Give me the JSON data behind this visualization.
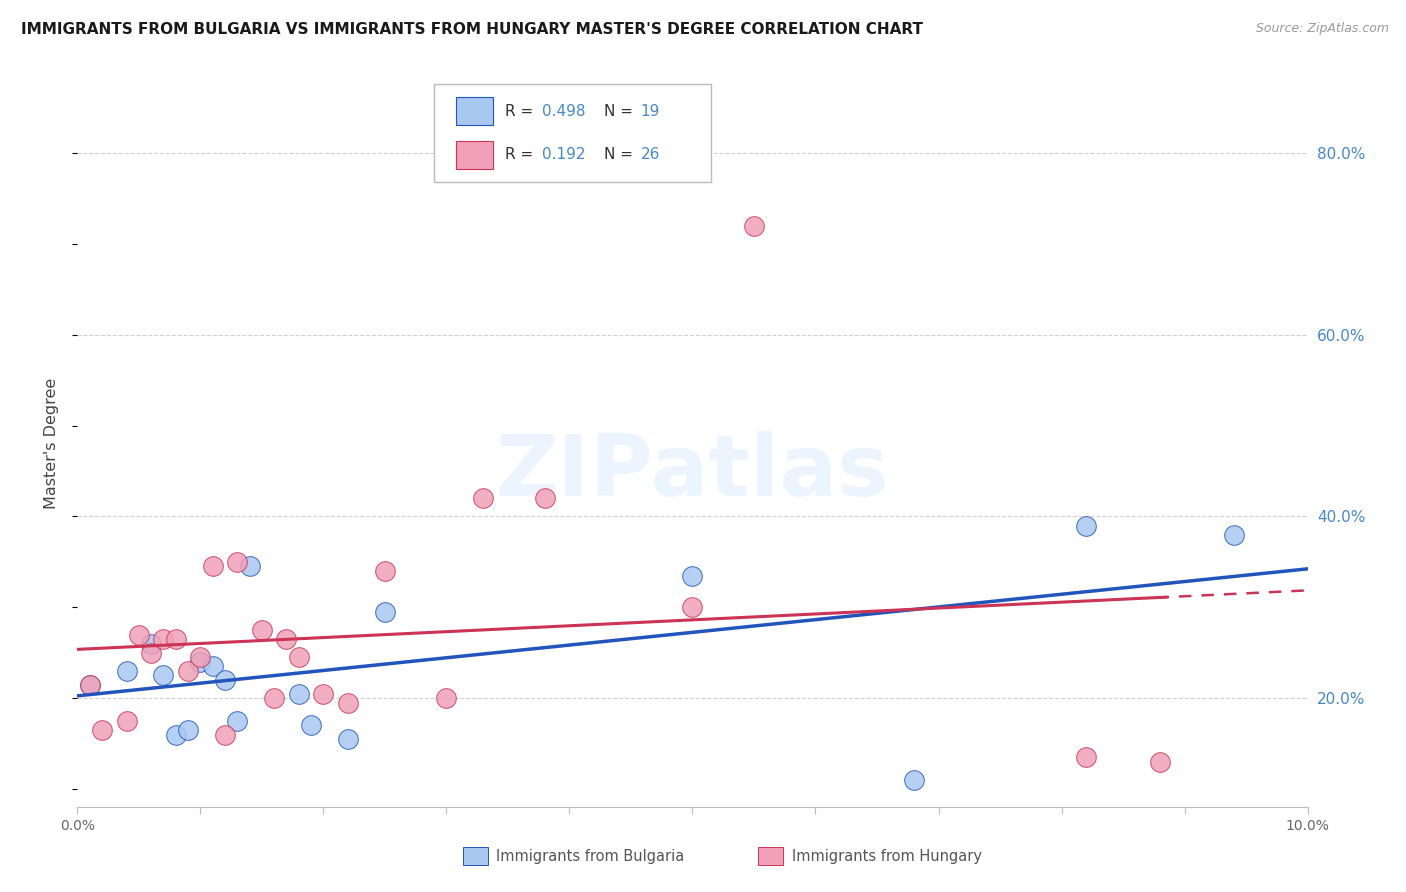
{
  "title": "IMMIGRANTS FROM BULGARIA VS IMMIGRANTS FROM HUNGARY MASTER'S DEGREE CORRELATION CHART",
  "source": "Source: ZipAtlas.com",
  "ylabel": "Master's Degree",
  "right_ytick_vals": [
    0.2,
    0.4,
    0.6,
    0.8
  ],
  "right_ytick_labels": [
    "20.0%",
    "40.0%",
    "60.0%",
    "80.0%"
  ],
  "xlim": [
    0.0,
    0.1
  ],
  "ylim": [
    0.08,
    0.88
  ],
  "color_bulgaria": "#a8c8f0",
  "color_hungary": "#f0a0b8",
  "color_line_bulgaria": "#2255bb",
  "color_line_hungary": "#cc3355",
  "bulgaria_x": [
    0.001,
    0.004,
    0.006,
    0.007,
    0.008,
    0.009,
    0.01,
    0.011,
    0.012,
    0.013,
    0.014,
    0.018,
    0.019,
    0.022,
    0.025,
    0.05,
    0.068,
    0.082,
    0.094
  ],
  "bulgaria_y": [
    0.215,
    0.23,
    0.26,
    0.225,
    0.16,
    0.165,
    0.24,
    0.235,
    0.22,
    0.175,
    0.345,
    0.205,
    0.17,
    0.155,
    0.295,
    0.335,
    0.11,
    0.39,
    0.38
  ],
  "hungary_x": [
    0.001,
    0.002,
    0.004,
    0.005,
    0.006,
    0.007,
    0.008,
    0.009,
    0.01,
    0.011,
    0.012,
    0.013,
    0.015,
    0.016,
    0.017,
    0.018,
    0.02,
    0.022,
    0.025,
    0.03,
    0.033,
    0.038,
    0.05,
    0.055,
    0.082,
    0.088
  ],
  "hungary_y": [
    0.215,
    0.165,
    0.175,
    0.27,
    0.25,
    0.265,
    0.265,
    0.23,
    0.245,
    0.345,
    0.16,
    0.35,
    0.275,
    0.2,
    0.265,
    0.245,
    0.205,
    0.195,
    0.34,
    0.2,
    0.42,
    0.42,
    0.3,
    0.72,
    0.135,
    0.13
  ],
  "watermark_text": "ZIPatlas",
  "background_color": "#ffffff",
  "grid_color": "#d0d0d0",
  "spine_color": "#bbbbbb"
}
